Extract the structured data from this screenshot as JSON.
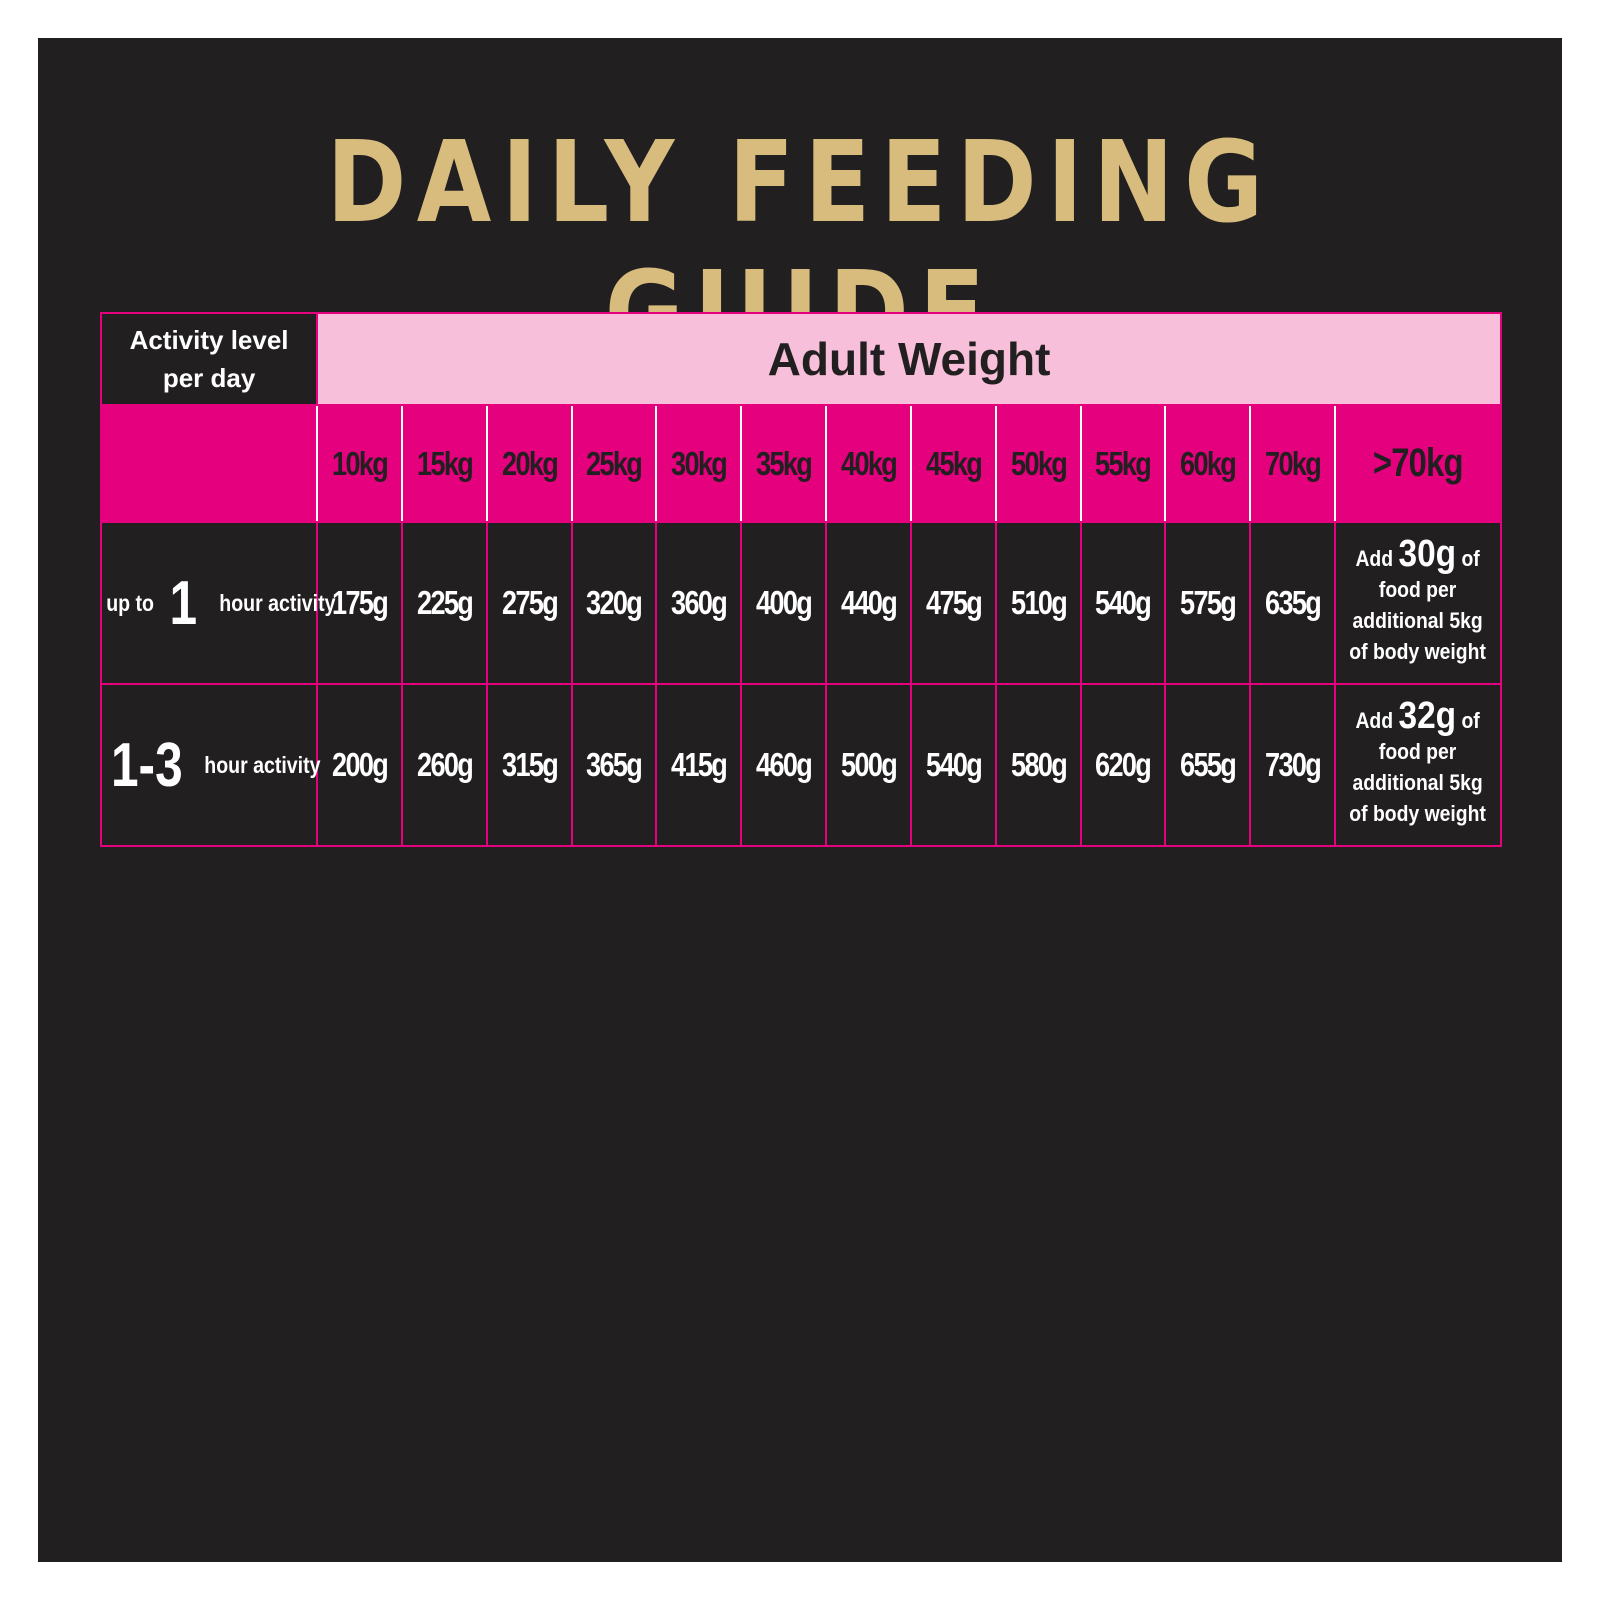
{
  "title": "DAILY FEEDING GUIDE",
  "header": {
    "activity_line1": "Activity level",
    "activity_line2": "per day",
    "adult_weight": "Adult Weight"
  },
  "weights": [
    "10kg",
    "15kg",
    "20kg",
    "25kg",
    "30kg",
    "35kg",
    "40kg",
    "45kg",
    "50kg",
    "55kg",
    "60kg",
    "70kg",
    ">70kg"
  ],
  "rows": [
    {
      "label_prefix": "up to",
      "label_big": "1",
      "label_suffix": "hour activity",
      "values": [
        "175g",
        "225g",
        "275g",
        "320g",
        "360g",
        "400g",
        "440g",
        "475g",
        "510g",
        "540g",
        "575g",
        "635g"
      ],
      "extra": {
        "add": "Add",
        "amount": "30g",
        "of": "of",
        "line2": "food per",
        "line3": "additional 5kg",
        "line4": "of body weight"
      }
    },
    {
      "label_prefix": "",
      "label_big": "1-3",
      "label_suffix": "hour activity",
      "values": [
        "200g",
        "260g",
        "315g",
        "365g",
        "415g",
        "460g",
        "500g",
        "540g",
        "580g",
        "620g",
        "655g",
        "730g"
      ],
      "extra": {
        "add": "Add",
        "amount": "32g",
        "of": "of",
        "line2": "food per",
        "line3": "additional 5kg",
        "line4": "of body weight"
      }
    }
  ],
  "colors": {
    "background": "#221f20",
    "gold": "#d7bc7e",
    "magenta": "#e5007d",
    "pink": "#f7bfd9",
    "white": "#ffffff"
  }
}
